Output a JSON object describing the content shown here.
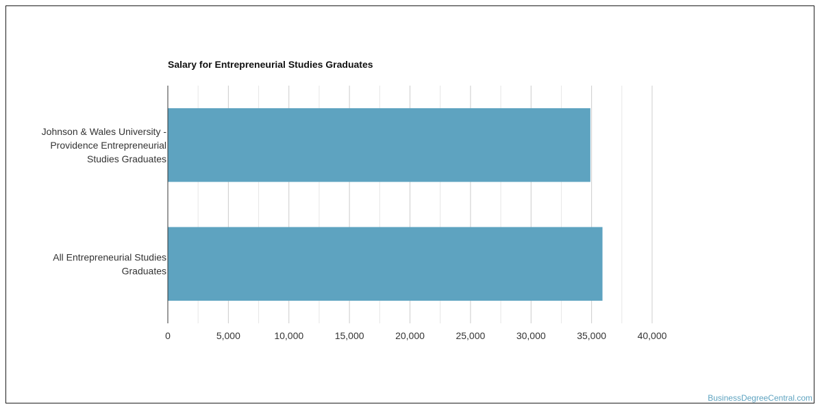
{
  "chart_data": {
    "type": "bar",
    "orientation": "horizontal",
    "title": "Salary for Entrepreneurial Studies Graduates",
    "categories": [
      "Johnson & Wales University - Providence Entrepreneurial Studies Graduates",
      "All Entrepreneurial Studies Graduates"
    ],
    "category_label_lines": [
      [
        "Johnson & Wales University -",
        "Providence Entrepreneurial",
        "Studies Graduates"
      ],
      [
        "All Entrepreneurial Studies",
        "Graduates"
      ]
    ],
    "values": [
      34900,
      35900
    ],
    "xlim": [
      0,
      40000
    ],
    "xticks": [
      0,
      5000,
      10000,
      15000,
      20000,
      25000,
      30000,
      35000,
      40000
    ],
    "xtick_labels": [
      "0",
      "5,000",
      "10,000",
      "15,000",
      "20,000",
      "25,000",
      "30,000",
      "35,000",
      "40,000"
    ],
    "grid": true,
    "bar_color": "#5ea3c0",
    "grid_color": "#d9d9d9",
    "xlabel": "",
    "ylabel": ""
  },
  "footer": {
    "credit": "BusinessDegreeCentral.com",
    "credit_color": "#5ea3c0"
  }
}
